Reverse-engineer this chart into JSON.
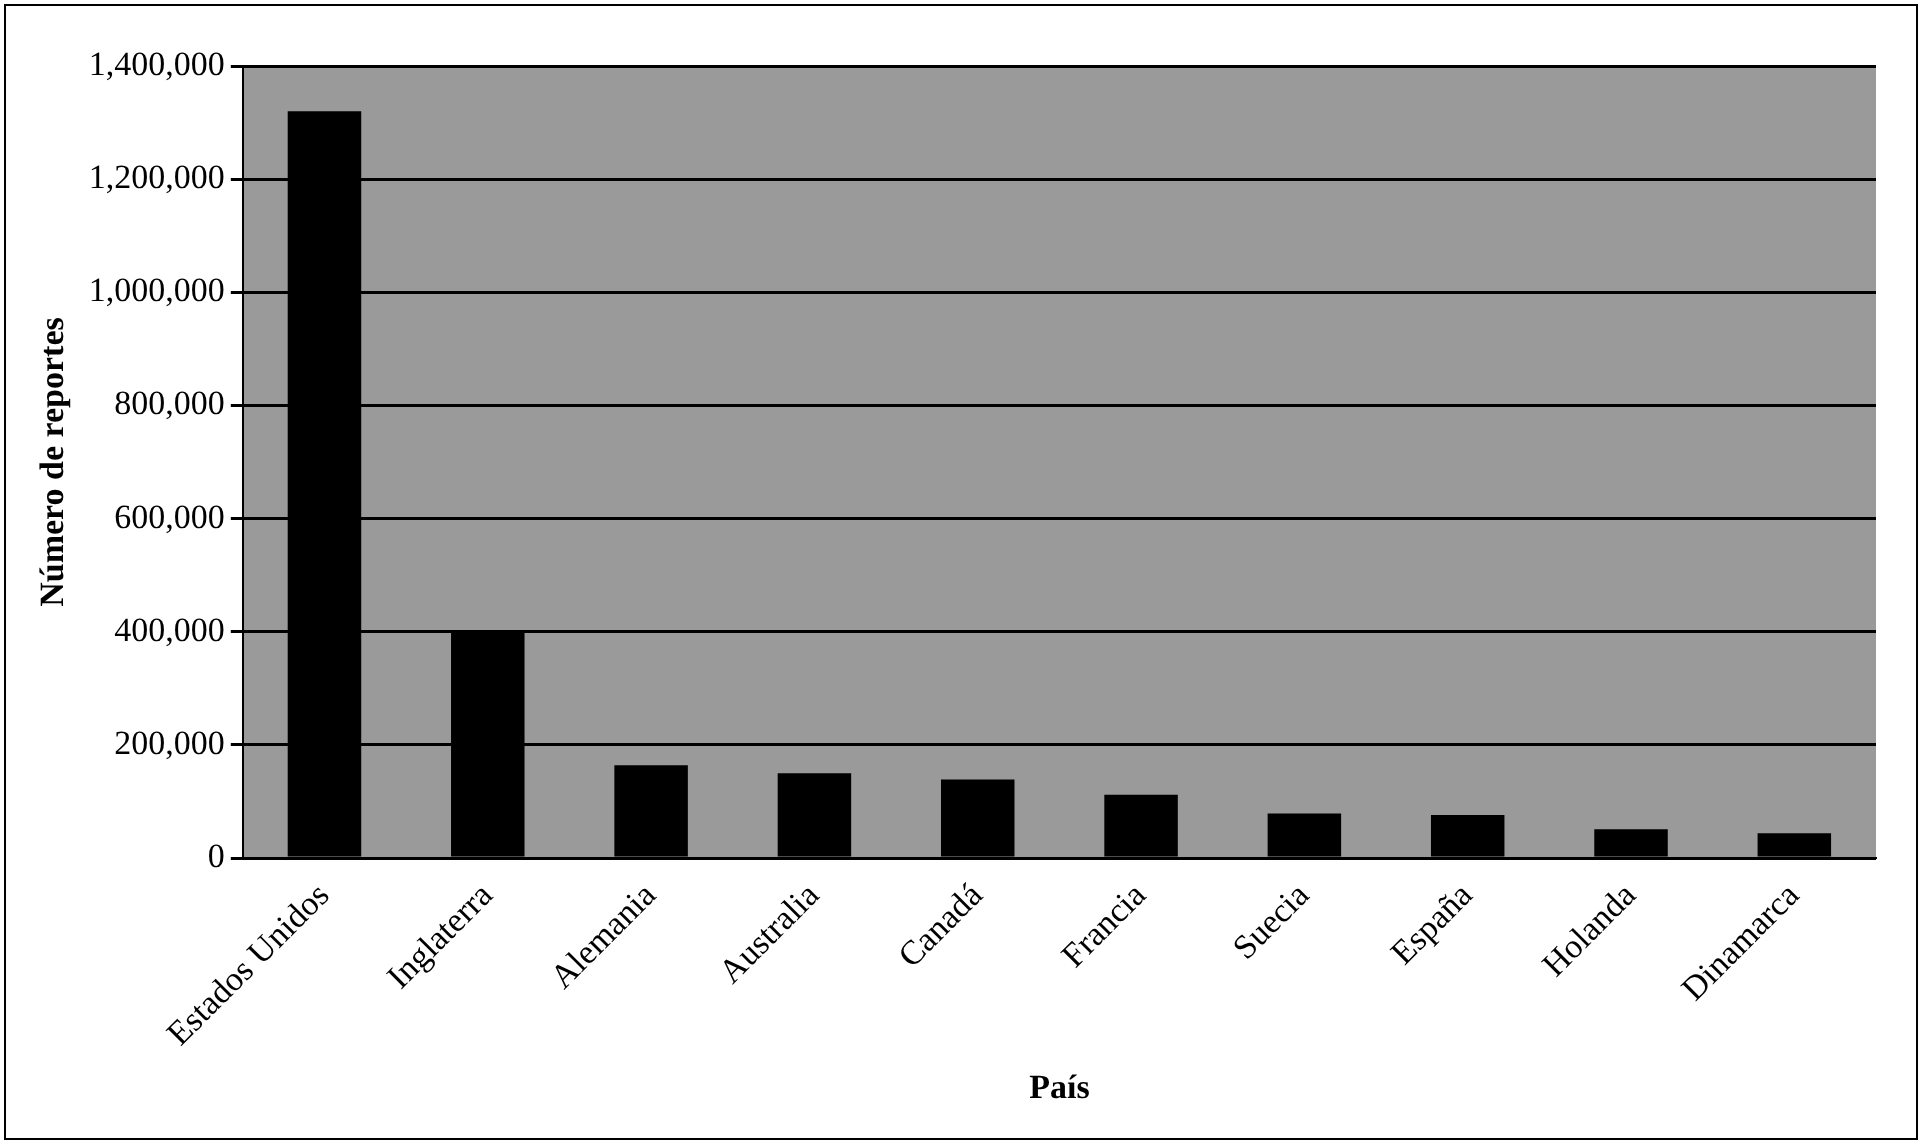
{
  "chart_data": {
    "type": "bar",
    "xlabel": "País",
    "ylabel": "Número de reportes",
    "categories": [
      "Estados Unidos",
      "Inglaterra",
      "Alemania",
      "Australia",
      "Canadá",
      "Francia",
      "Suecia",
      "España",
      "Holanda",
      "Dinamarca"
    ],
    "values": [
      1320000,
      398000,
      164000,
      150000,
      139000,
      112000,
      79000,
      76000,
      51000,
      44000
    ],
    "color": "#000000",
    "ylim": [
      0,
      1400000
    ],
    "yticks": [
      0,
      {
        "value": 200000,
        "label": "200,000"
      },
      {
        "value": 400000,
        "label": "400,000"
      },
      {
        "value": 600000,
        "label": "600,000"
      },
      {
        "value": 800000,
        "label": "800,000"
      },
      {
        "value": 1000000,
        "label": "1,000,000"
      },
      {
        "value": 1200000,
        "label": "1,200,000"
      },
      {
        "value": 1400000,
        "label": "1,400,000"
      }
    ],
    "grid": "y",
    "legend": false
  }
}
